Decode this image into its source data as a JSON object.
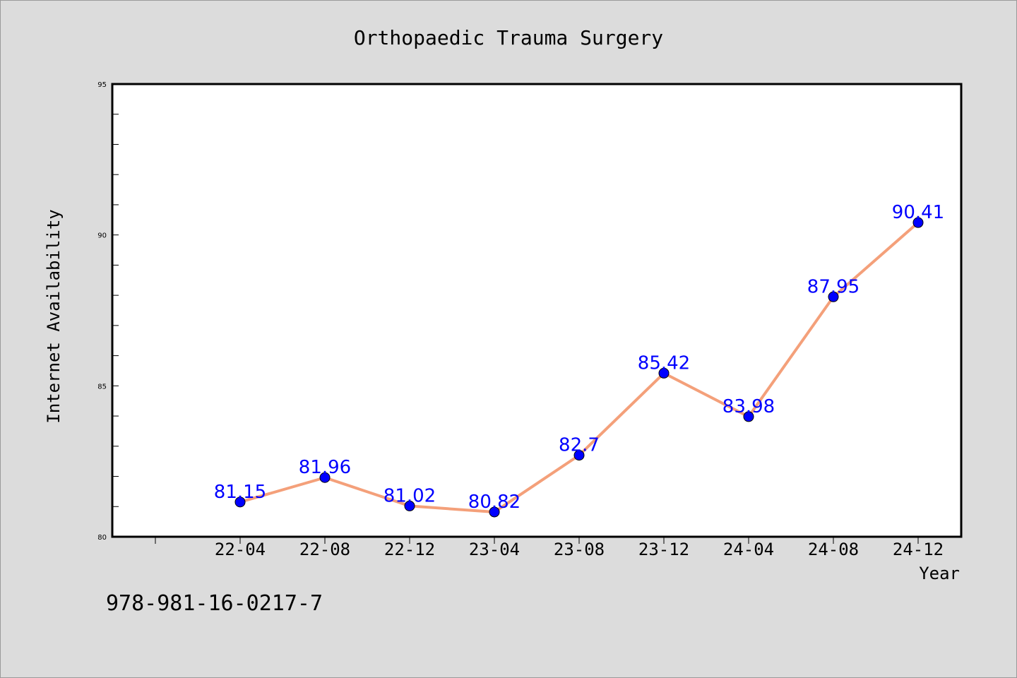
{
  "chart_data": {
    "type": "line",
    "title": "Orthopaedic Trauma Surgery",
    "xlabel": "Year",
    "ylabel": "Internet Availability",
    "categories": [
      "22-04",
      "22-08",
      "22-12",
      "23-04",
      "23-08",
      "23-12",
      "24-04",
      "24-08",
      "24-12"
    ],
    "series": [
      {
        "values": [
          81.15,
          81.96,
          81.02,
          80.82,
          82.7,
          85.42,
          83.98,
          87.95,
          90.41
        ]
      }
    ],
    "value_labels": [
      "81.15",
      "81.96",
      "81.02",
      "80.82",
      "82.7",
      "85.42",
      "83.98",
      "87.95",
      "90.41"
    ],
    "ylim": [
      80,
      95
    ],
    "yticks": [
      "80",
      "85",
      "90",
      "95"
    ],
    "grid": false,
    "line_color": "#f4a07a",
    "marker_color": "#0000ff",
    "label_color": "#0000ff"
  },
  "footer_text": "978-981-16-0217-7"
}
